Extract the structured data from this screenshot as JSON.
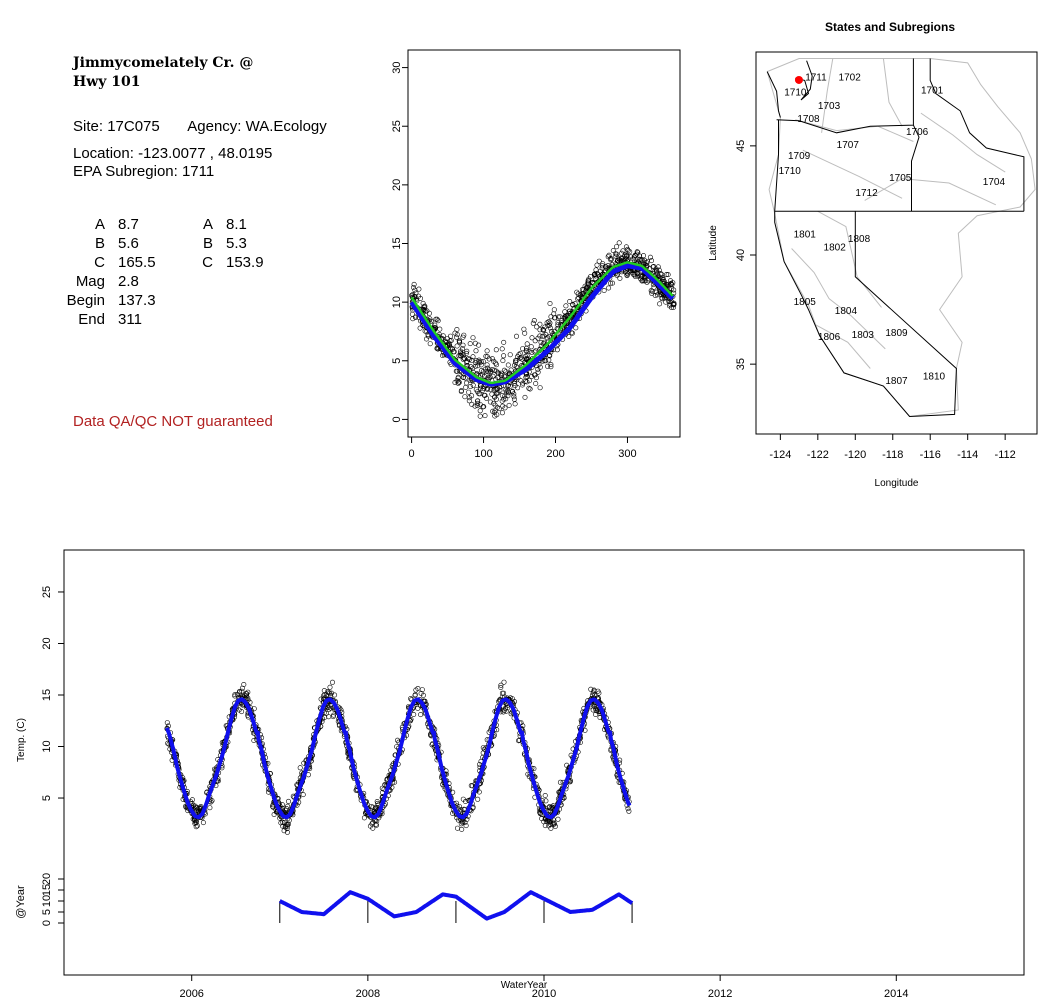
{
  "station": {
    "name_line1": "Jimmycomelately Cr. @",
    "name_line2": "Hwy 101",
    "site_label": "Site:",
    "site": "17C075",
    "agency_label": "Agency:",
    "agency": "WA.Ecology",
    "location_label": "Location:",
    "location": "-123.0077 , 48.0195",
    "subregion_label": "EPA Subregion:",
    "subregion": "1711",
    "warning": "Data QA/QC NOT guaranteed"
  },
  "params": {
    "left": [
      {
        "label": "A",
        "value": "8.7"
      },
      {
        "label": "B",
        "value": "5.6"
      },
      {
        "label": "C",
        "value": "165.5"
      },
      {
        "label": "Mag",
        "value": "2.8"
      },
      {
        "label": "Begin",
        "value": "137.3"
      },
      {
        "label": "End",
        "value": "311"
      }
    ],
    "right": [
      {
        "label": "A",
        "value": "8.1"
      },
      {
        "label": "B",
        "value": "5.3"
      },
      {
        "label": "C",
        "value": "153.9"
      }
    ]
  },
  "colors": {
    "fit_blue": "#1010ee",
    "fit_green": "#22cc22",
    "warning": "#b22222",
    "site_marker": "#ff0000",
    "boundary_gray": "#bdbdbd"
  },
  "chart_data": [
    {
      "type": "scatter",
      "title": "",
      "xlabel": "",
      "ylabel": "",
      "xlim": [
        -5,
        373
      ],
      "ylim": [
        -1.5,
        31.5
      ],
      "xticks": [
        0,
        100,
        200,
        300
      ],
      "yticks": [
        0,
        5,
        10,
        15,
        20,
        25,
        30
      ],
      "grid": false,
      "series": [
        {
          "kind": "points",
          "x": [
            0,
            15,
            30,
            45,
            60,
            75,
            90,
            105,
            120,
            135,
            150,
            165,
            180,
            195,
            210,
            225,
            240,
            255,
            270,
            285,
            300,
            315,
            330,
            345,
            360
          ],
          "y": [
            10.2,
            9.0,
            7.5,
            6.3,
            5.2,
            4.2,
            3.5,
            3.0,
            2.9,
            3.2,
            4.0,
            5.0,
            5.9,
            6.8,
            7.9,
            9.0,
            10.4,
            11.7,
            12.8,
            13.4,
            13.5,
            13.2,
            12.6,
            11.6,
            10.5
          ]
        },
        {
          "kind": "fit",
          "color": "#1010ee",
          "x": [
            0,
            30,
            60,
            90,
            110,
            130,
            160,
            190,
            220,
            250,
            280,
            300,
            320,
            340,
            365
          ],
          "y": [
            10.0,
            7.2,
            4.8,
            3.4,
            3.0,
            3.2,
            4.3,
            5.9,
            7.8,
            10.4,
            12.6,
            13.1,
            12.9,
            11.7,
            10.2
          ]
        },
        {
          "kind": "fit",
          "color": "#22cc22",
          "x": [
            0,
            30,
            60,
            90,
            110,
            130,
            160,
            190,
            220,
            250,
            280,
            300,
            320,
            340,
            365
          ],
          "y": [
            10.4,
            7.6,
            5.1,
            3.6,
            3.1,
            3.3,
            4.7,
            6.5,
            8.7,
            11.2,
            13.0,
            13.4,
            13.1,
            12.0,
            10.4
          ]
        }
      ]
    },
    {
      "type": "map",
      "title": "States and Subregions",
      "xlabel": "Longitude",
      "ylabel": "Latitude",
      "xlim": [
        -125.3,
        -110.3
      ],
      "ylim": [
        31.8,
        49.3
      ],
      "xticks": [
        -124,
        -122,
        -120,
        -118,
        -116,
        -114,
        -112
      ],
      "yticks": [
        35,
        40,
        45
      ],
      "site": {
        "lon": -123.0077,
        "lat": 48.0195
      },
      "regions": [
        {
          "name": "1711",
          "lon": -122.1,
          "lat": 48.0
        },
        {
          "name": "1710",
          "lon": -123.2,
          "lat": 47.3
        },
        {
          "name": "1702",
          "lon": -120.3,
          "lat": 48.0
        },
        {
          "name": "1701",
          "lon": -115.9,
          "lat": 47.4
        },
        {
          "name": "1703",
          "lon": -121.4,
          "lat": 46.7
        },
        {
          "name": "1708",
          "lon": -122.5,
          "lat": 46.1
        },
        {
          "name": "1706",
          "lon": -116.7,
          "lat": 45.5
        },
        {
          "name": "1707",
          "lon": -120.4,
          "lat": 44.9
        },
        {
          "name": "1709",
          "lon": -123.0,
          "lat": 44.4
        },
        {
          "name": "1710",
          "lon": -123.5,
          "lat": 43.7
        },
        {
          "name": "1705",
          "lon": -117.6,
          "lat": 43.4
        },
        {
          "name": "1704",
          "lon": -112.6,
          "lat": 43.2
        },
        {
          "name": "1712",
          "lon": -119.4,
          "lat": 42.7
        },
        {
          "name": "1801",
          "lon": -122.7,
          "lat": 40.8
        },
        {
          "name": "1808",
          "lon": -119.8,
          "lat": 40.6
        },
        {
          "name": "1802",
          "lon": -121.1,
          "lat": 40.2
        },
        {
          "name": "1805",
          "lon": -122.7,
          "lat": 37.7
        },
        {
          "name": "1804",
          "lon": -120.5,
          "lat": 37.3
        },
        {
          "name": "1806",
          "lon": -121.4,
          "lat": 36.1
        },
        {
          "name": "1803",
          "lon": -119.6,
          "lat": 36.2
        },
        {
          "name": "1809",
          "lon": -117.8,
          "lat": 36.3
        },
        {
          "name": "1807",
          "lon": -117.8,
          "lat": 34.1
        },
        {
          "name": "1810",
          "lon": -115.8,
          "lat": 34.3
        }
      ]
    },
    {
      "type": "scatter",
      "title": "",
      "xlabel": "WaterYear",
      "ylabel": "Temp. (C)",
      "ylabel2": "@Year",
      "xlim": [
        2004.55,
        2015.45
      ],
      "ylim": [
        -1.5,
        31.5
      ],
      "xticks": [
        2006,
        2008,
        2010,
        2012,
        2014
      ],
      "yticks": [
        5,
        10,
        15,
        20,
        25
      ],
      "yticks2": [
        0,
        5,
        10,
        15,
        20
      ],
      "grid": false,
      "series": [
        {
          "kind": "points-and-fit",
          "color": "#1010ee",
          "x_start": 2005.72,
          "x_end": 2010.97
        },
        {
          "kind": "annual",
          "color": "#1010ee",
          "x": [
            2007.0,
            2007.25,
            2007.5,
            2007.8,
            2008.0,
            2008.3,
            2008.55,
            2008.85,
            2009.0,
            2009.35,
            2009.55,
            2009.85,
            2010.0,
            2010.3,
            2010.55,
            2010.85,
            2011.0
          ],
          "y": [
            10,
            5,
            4,
            14,
            11,
            3,
            5,
            13,
            12,
            2,
            5,
            14,
            11,
            5,
            6,
            13,
            9
          ]
        }
      ]
    }
  ]
}
